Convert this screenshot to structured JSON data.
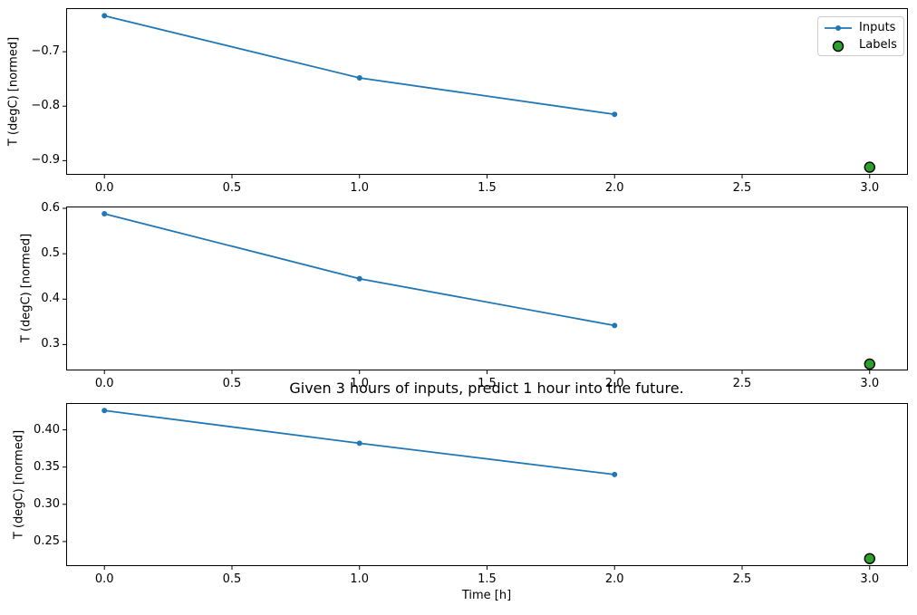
{
  "figure": {
    "title": "Given 3 hours of inputs, predict 1 hour into the future.",
    "xlabel": "Time [h]",
    "background": "#ffffff"
  },
  "colors": {
    "inputs_line": "#1f77b4",
    "labels_fill": "#2ca02c",
    "labels_edge": "#000000",
    "axis": "#000000",
    "legend_border": "#cccccc"
  },
  "legend": {
    "items": [
      {
        "label": "Inputs",
        "sample": "line-with-dot"
      },
      {
        "label": "Labels",
        "sample": "green-circle"
      }
    ]
  },
  "chart_data": [
    {
      "type": "line+scatter",
      "ylabel": "T (degC) [normed]",
      "xlabel": "",
      "xlim": [
        -0.15,
        3.15
      ],
      "ylim": [
        -0.926,
        -0.62
      ],
      "xtick_values": [
        0.0,
        0.5,
        1.0,
        1.5,
        2.0,
        2.5,
        3.0
      ],
      "xtick_labels": [
        "0.0",
        "0.5",
        "1.0",
        "1.5",
        "2.0",
        "2.5",
        "3.0"
      ],
      "ytick_values": [
        -0.7,
        -0.8,
        -0.9
      ],
      "ytick_labels": [
        "−0.7",
        "−0.8",
        "−0.9"
      ],
      "grid": false,
      "legend_visible": true,
      "series": [
        {
          "name": "Inputs",
          "type": "line",
          "marker": "dot",
          "color": "#1f77b4",
          "x": [
            0,
            1,
            2
          ],
          "y": [
            -0.634,
            -0.748,
            -0.815
          ]
        },
        {
          "name": "Labels",
          "type": "scatter",
          "marker": "circle",
          "color": "#2ca02c",
          "edgecolor": "#000000",
          "x": [
            3
          ],
          "y": [
            -0.912
          ]
        }
      ]
    },
    {
      "type": "line+scatter",
      "ylabel": "T (degC) [normed]",
      "xlabel": "",
      "xlim": [
        -0.15,
        3.15
      ],
      "ylim": [
        0.243,
        0.604
      ],
      "xtick_values": [
        0.0,
        0.5,
        1.0,
        1.5,
        2.0,
        2.5,
        3.0
      ],
      "xtick_labels": [
        "0.0",
        "0.5",
        "1.0",
        "1.5",
        "2.0",
        "2.5",
        "3.0"
      ],
      "ytick_values": [
        0.6,
        0.5,
        0.4,
        0.3
      ],
      "ytick_labels": [
        "0.6",
        "0.5",
        "0.4",
        "0.3"
      ],
      "grid": false,
      "legend_visible": false,
      "series": [
        {
          "name": "Inputs",
          "type": "line",
          "marker": "dot",
          "color": "#1f77b4",
          "x": [
            0,
            1,
            2
          ],
          "y": [
            0.588,
            0.445,
            0.342
          ]
        },
        {
          "name": "Labels",
          "type": "scatter",
          "marker": "circle",
          "color": "#2ca02c",
          "edgecolor": "#000000",
          "x": [
            3
          ],
          "y": [
            0.257
          ]
        }
      ]
    },
    {
      "type": "line+scatter",
      "ylabel": "T (degC) [normed]",
      "xlabel": "Time [h]",
      "xlim": [
        -0.15,
        3.15
      ],
      "ylim": [
        0.217,
        0.436
      ],
      "xtick_values": [
        0.0,
        0.5,
        1.0,
        1.5,
        2.0,
        2.5,
        3.0
      ],
      "xtick_labels": [
        "0.0",
        "0.5",
        "1.0",
        "1.5",
        "2.0",
        "2.5",
        "3.0"
      ],
      "ytick_values": [
        0.4,
        0.35,
        0.3,
        0.25
      ],
      "ytick_labels": [
        "0.40",
        "0.35",
        "0.30",
        "0.25"
      ],
      "grid": false,
      "legend_visible": false,
      "series": [
        {
          "name": "Inputs",
          "type": "line",
          "marker": "dot",
          "color": "#1f77b4",
          "x": [
            0,
            1,
            2
          ],
          "y": [
            0.426,
            0.382,
            0.34
          ]
        },
        {
          "name": "Labels",
          "type": "scatter",
          "marker": "circle",
          "color": "#2ca02c",
          "edgecolor": "#000000",
          "x": [
            3
          ],
          "y": [
            0.227
          ]
        }
      ]
    }
  ]
}
